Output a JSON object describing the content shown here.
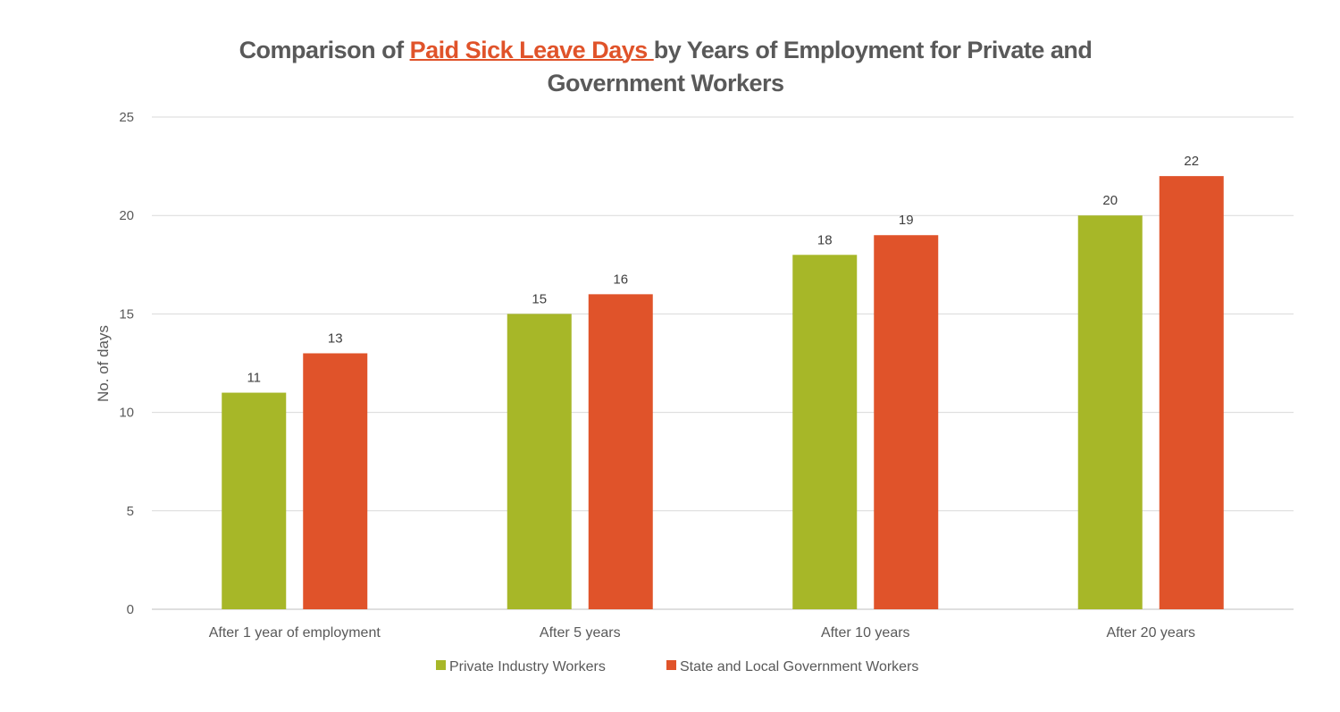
{
  "chart_data": {
    "type": "bar",
    "title_parts": [
      "Comparison of ",
      "Paid Sick Leave Days ",
      "by Years of Employment for Private and Government Workers"
    ],
    "xlabel": "",
    "ylabel": "No. of days",
    "ylim": [
      0,
      25
    ],
    "yticks": [
      0,
      5,
      10,
      15,
      20,
      25
    ],
    "grid": true,
    "legend_position": "bottom",
    "categories": [
      "After 1 year of employment",
      "After 5 years",
      "After 10 years",
      "After 20 years"
    ],
    "series": [
      {
        "name": "Private Industry Workers",
        "color": "#A7B728",
        "values": [
          11,
          15,
          18,
          20
        ]
      },
      {
        "name": "State and Local Government Workers",
        "color": "#E0532A",
        "values": [
          13,
          16,
          19,
          22
        ]
      }
    ],
    "title_highlight_color": "#E0532A"
  }
}
